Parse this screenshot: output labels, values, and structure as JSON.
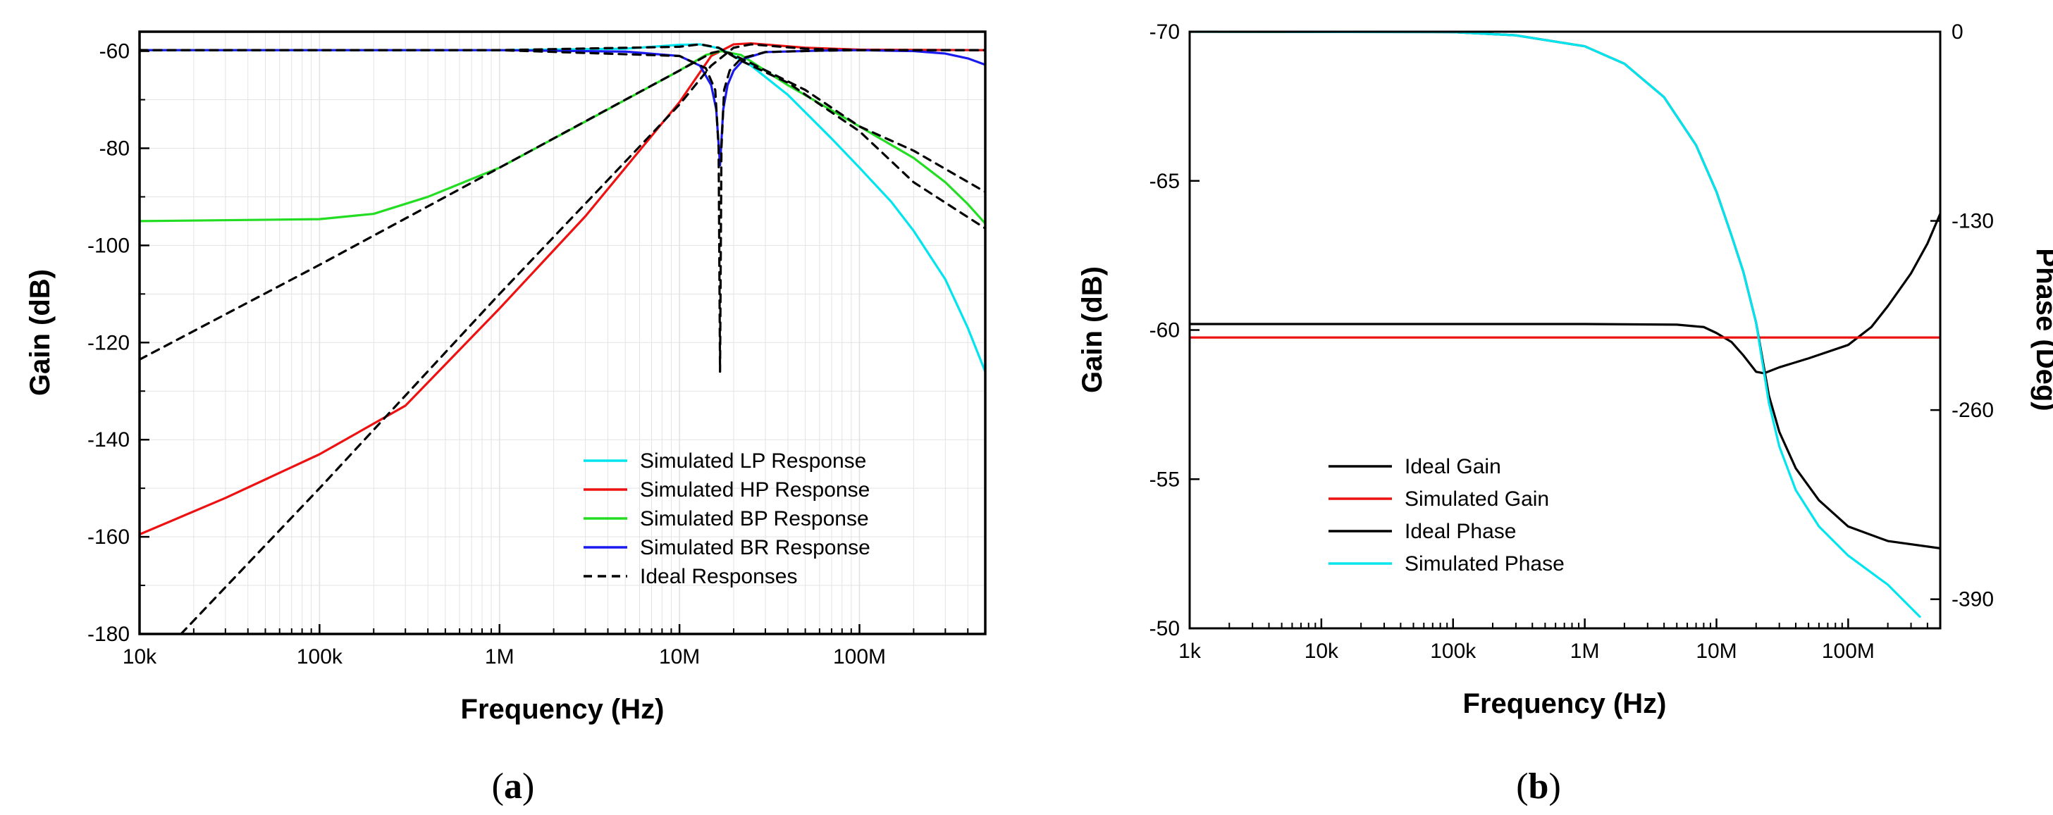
{
  "chart_data": [
    {
      "panel_label": "a",
      "type": "line",
      "xscale": "log",
      "xlabel": "Frequency (Hz)",
      "ylabel": "Gain (dB)",
      "xlim": [
        10000,
        500000000
      ],
      "ylim": [
        -180,
        -56
      ],
      "xticks": [
        10000,
        100000,
        1000000,
        10000000,
        100000000
      ],
      "xtick_labels": [
        "10k",
        "100k",
        "1M",
        "10M",
        "100M"
      ],
      "yticks": [
        -180,
        -160,
        -140,
        -120,
        -100,
        -80,
        -60
      ],
      "ytick_labels": [
        "-180",
        "-160",
        "-140",
        "-120",
        "-100",
        "-80",
        "-60"
      ],
      "grid": true,
      "legend_position": "bottom-right",
      "series": [
        {
          "name": "Simulated LP Response",
          "color": "#00e5ee",
          "dash": "solid",
          "x": [
            10000,
            100000,
            1000000,
            5000000,
            10000000,
            13000000,
            17000000,
            25000000,
            40000000,
            70000000,
            100000000,
            150000000,
            200000000,
            300000000,
            400000000,
            500000000
          ],
          "y": [
            -59.8,
            -59.8,
            -59.8,
            -59.5,
            -58.7,
            -58.6,
            -59.5,
            -63,
            -69,
            -78,
            -84,
            -91,
            -97,
            -107,
            -117,
            -126
          ]
        },
        {
          "name": "Simulated HP Response",
          "color": "#ee1111",
          "dash": "solid",
          "x": [
            10000,
            30000,
            100000,
            300000,
            1000000,
            3000000,
            10000000,
            15000000,
            20000000,
            25000000,
            50000000,
            100000000,
            500000000
          ],
          "y": [
            -159.5,
            -152,
            -143,
            -133,
            -113,
            -94,
            -70.5,
            -61,
            -58.6,
            -58.4,
            -59.3,
            -59.7,
            -59.8
          ]
        },
        {
          "name": "Simulated BP Response",
          "color": "#22dd22",
          "dash": "solid",
          "x": [
            10000,
            100000,
            200000,
            400000,
            1000000,
            3000000,
            10000000,
            14000000,
            17000000,
            22000000,
            40000000,
            100000000,
            200000000,
            300000000,
            400000000,
            500000000
          ],
          "y": [
            -95,
            -94.6,
            -93.5,
            -90,
            -84,
            -74.5,
            -64,
            -60.8,
            -60,
            -60.8,
            -67,
            -75.5,
            -82,
            -87,
            -91.5,
            -95.5
          ]
        },
        {
          "name": "Simulated BR Response",
          "color": "#1a1aee",
          "dash": "solid",
          "x": [
            10000,
            1000000,
            5000000,
            10000000,
            13000000,
            15000000,
            16000000,
            16800000,
            17500000,
            18500000,
            20000000,
            23000000,
            30000000,
            60000000,
            100000000,
            200000000,
            300000000,
            400000000,
            500000000
          ],
          "y": [
            -59.8,
            -59.8,
            -60.1,
            -61,
            -63,
            -67,
            -72,
            -83.5,
            -72,
            -67,
            -64,
            -61.5,
            -60.2,
            -59.9,
            -59.8,
            -60,
            -60.5,
            -61.5,
            -62.8
          ]
        },
        {
          "name": "Ideal Responses",
          "color": "#000000",
          "dash": "dashed",
          "segments": [
            {
              "x": [
                10000,
                1000000,
                10000000,
                13000000,
                16500000,
                22000000,
                40000000,
                100000000,
                200000000,
                500000000
              ],
              "y": [
                -59.8,
                -59.8,
                -59.1,
                -58.6,
                -59.3,
                -62,
                -66.5,
                -76.5,
                -87,
                -96.5
              ]
            },
            {
              "x": [
                10000,
                100000,
                1000000,
                5000000,
                10000000,
                15000000,
                16700000,
                19000000,
                25000000,
                50000000,
                100000000,
                200000000,
                500000000
              ],
              "y": [
                -123.5,
                -104,
                -84,
                -70,
                -64,
                -60.4,
                -60,
                -60.4,
                -62.5,
                -68,
                -75.5,
                -80.5,
                -89
              ]
            },
            {
              "x": [
                17000,
                100000,
                1000000,
                10000000,
                15000000,
                20000000,
                25000000,
                50000000,
                100000000,
                500000000
              ],
              "y": [
                -180,
                -150,
                -110,
                -71,
                -63,
                -59.3,
                -58.6,
                -59.5,
                -59.8,
                -59.8
              ]
            },
            {
              "x": [
                10000,
                1000000,
                10000000,
                14000000,
                15800000,
                16500000,
                16800000,
                17100000,
                17700000,
                19000000,
                22000000,
                30000000,
                60000000,
                100000000,
                500000000
              ],
              "y": [
                -59.8,
                -59.8,
                -61,
                -63.5,
                -68,
                -80,
                -126,
                -80,
                -68,
                -64,
                -61.5,
                -60.2,
                -59.9,
                -59.8,
                -59.8
              ]
            }
          ]
        }
      ]
    },
    {
      "panel_label": "b",
      "type": "line",
      "xscale": "log",
      "xlabel": "Frequency (Hz)",
      "ylabel": "Gain (dB)",
      "ylabel_right": "Phase (Deg)",
      "xlim": [
        1000,
        500000000
      ],
      "ylim": [
        -50,
        -70
      ],
      "ylim_note": "left axis inverted: -70 at top, -50 at bottom",
      "ylim_right": [
        -410,
        0
      ],
      "xticks": [
        1000,
        10000,
        100000,
        1000000,
        10000000,
        100000000
      ],
      "xtick_labels": [
        "1k",
        "10k",
        "100k",
        "1M",
        "10M",
        "100M"
      ],
      "yticks": [
        -70,
        -65,
        -60,
        -55,
        -50
      ],
      "ytick_labels": [
        "-70",
        "-65",
        "-60",
        "-55",
        "-50"
      ],
      "yticks_right": [
        0,
        -130,
        -260,
        -390
      ],
      "ytick_labels_right": [
        "0",
        "-130",
        "-260",
        "-390"
      ],
      "grid": false,
      "legend_position": "bottom-left",
      "series": [
        {
          "name": "Ideal Gain",
          "color": "#000000",
          "axis": "left",
          "x": [
            1000,
            1000000,
            5000000,
            8000000,
            10000000,
            13000000,
            16000000,
            20000000,
            23000000,
            30000000,
            50000000,
            100000000,
            150000000,
            200000000,
            300000000,
            400000000,
            500000000
          ],
          "y": [
            -60.2,
            -60.2,
            -60.18,
            -60.1,
            -59.9,
            -59.6,
            -59.15,
            -58.6,
            -58.55,
            -58.75,
            -59.05,
            -59.5,
            -60.1,
            -60.8,
            -61.9,
            -62.9,
            -63.9
          ]
        },
        {
          "name": "Simulated Gain",
          "color": "#ee1111",
          "axis": "left",
          "x": [
            1000,
            500000000
          ],
          "y": [
            -59.75,
            -59.75
          ]
        },
        {
          "name": "Ideal Phase",
          "color": "#000000",
          "axis": "right",
          "x": [
            1000,
            100000,
            300000,
            1000000,
            2000000,
            4000000,
            7000000,
            10000000,
            13000000,
            16000000,
            20000000,
            25000000,
            30000000,
            40000000,
            60000000,
            100000000,
            200000000,
            500000000
          ],
          "y": [
            0,
            -0.3,
            -2.5,
            -10,
            -22,
            -45,
            -78,
            -110,
            -140,
            -165,
            -200,
            -250,
            -275,
            -300,
            -322,
            -340,
            -350,
            -355
          ]
        },
        {
          "name": "Simulated Phase",
          "color": "#00e5ee",
          "axis": "right",
          "x": [
            1000,
            100000,
            300000,
            1000000,
            2000000,
            4000000,
            7000000,
            10000000,
            13000000,
            16000000,
            20000000,
            25000000,
            30000000,
            40000000,
            60000000,
            100000000,
            200000000,
            350000000
          ],
          "y": [
            0,
            -0.3,
            -2.5,
            -10,
            -22,
            -45,
            -78,
            -110,
            -140,
            -165,
            -200,
            -255,
            -285,
            -315,
            -340,
            -360,
            -380,
            -402
          ]
        }
      ]
    }
  ]
}
